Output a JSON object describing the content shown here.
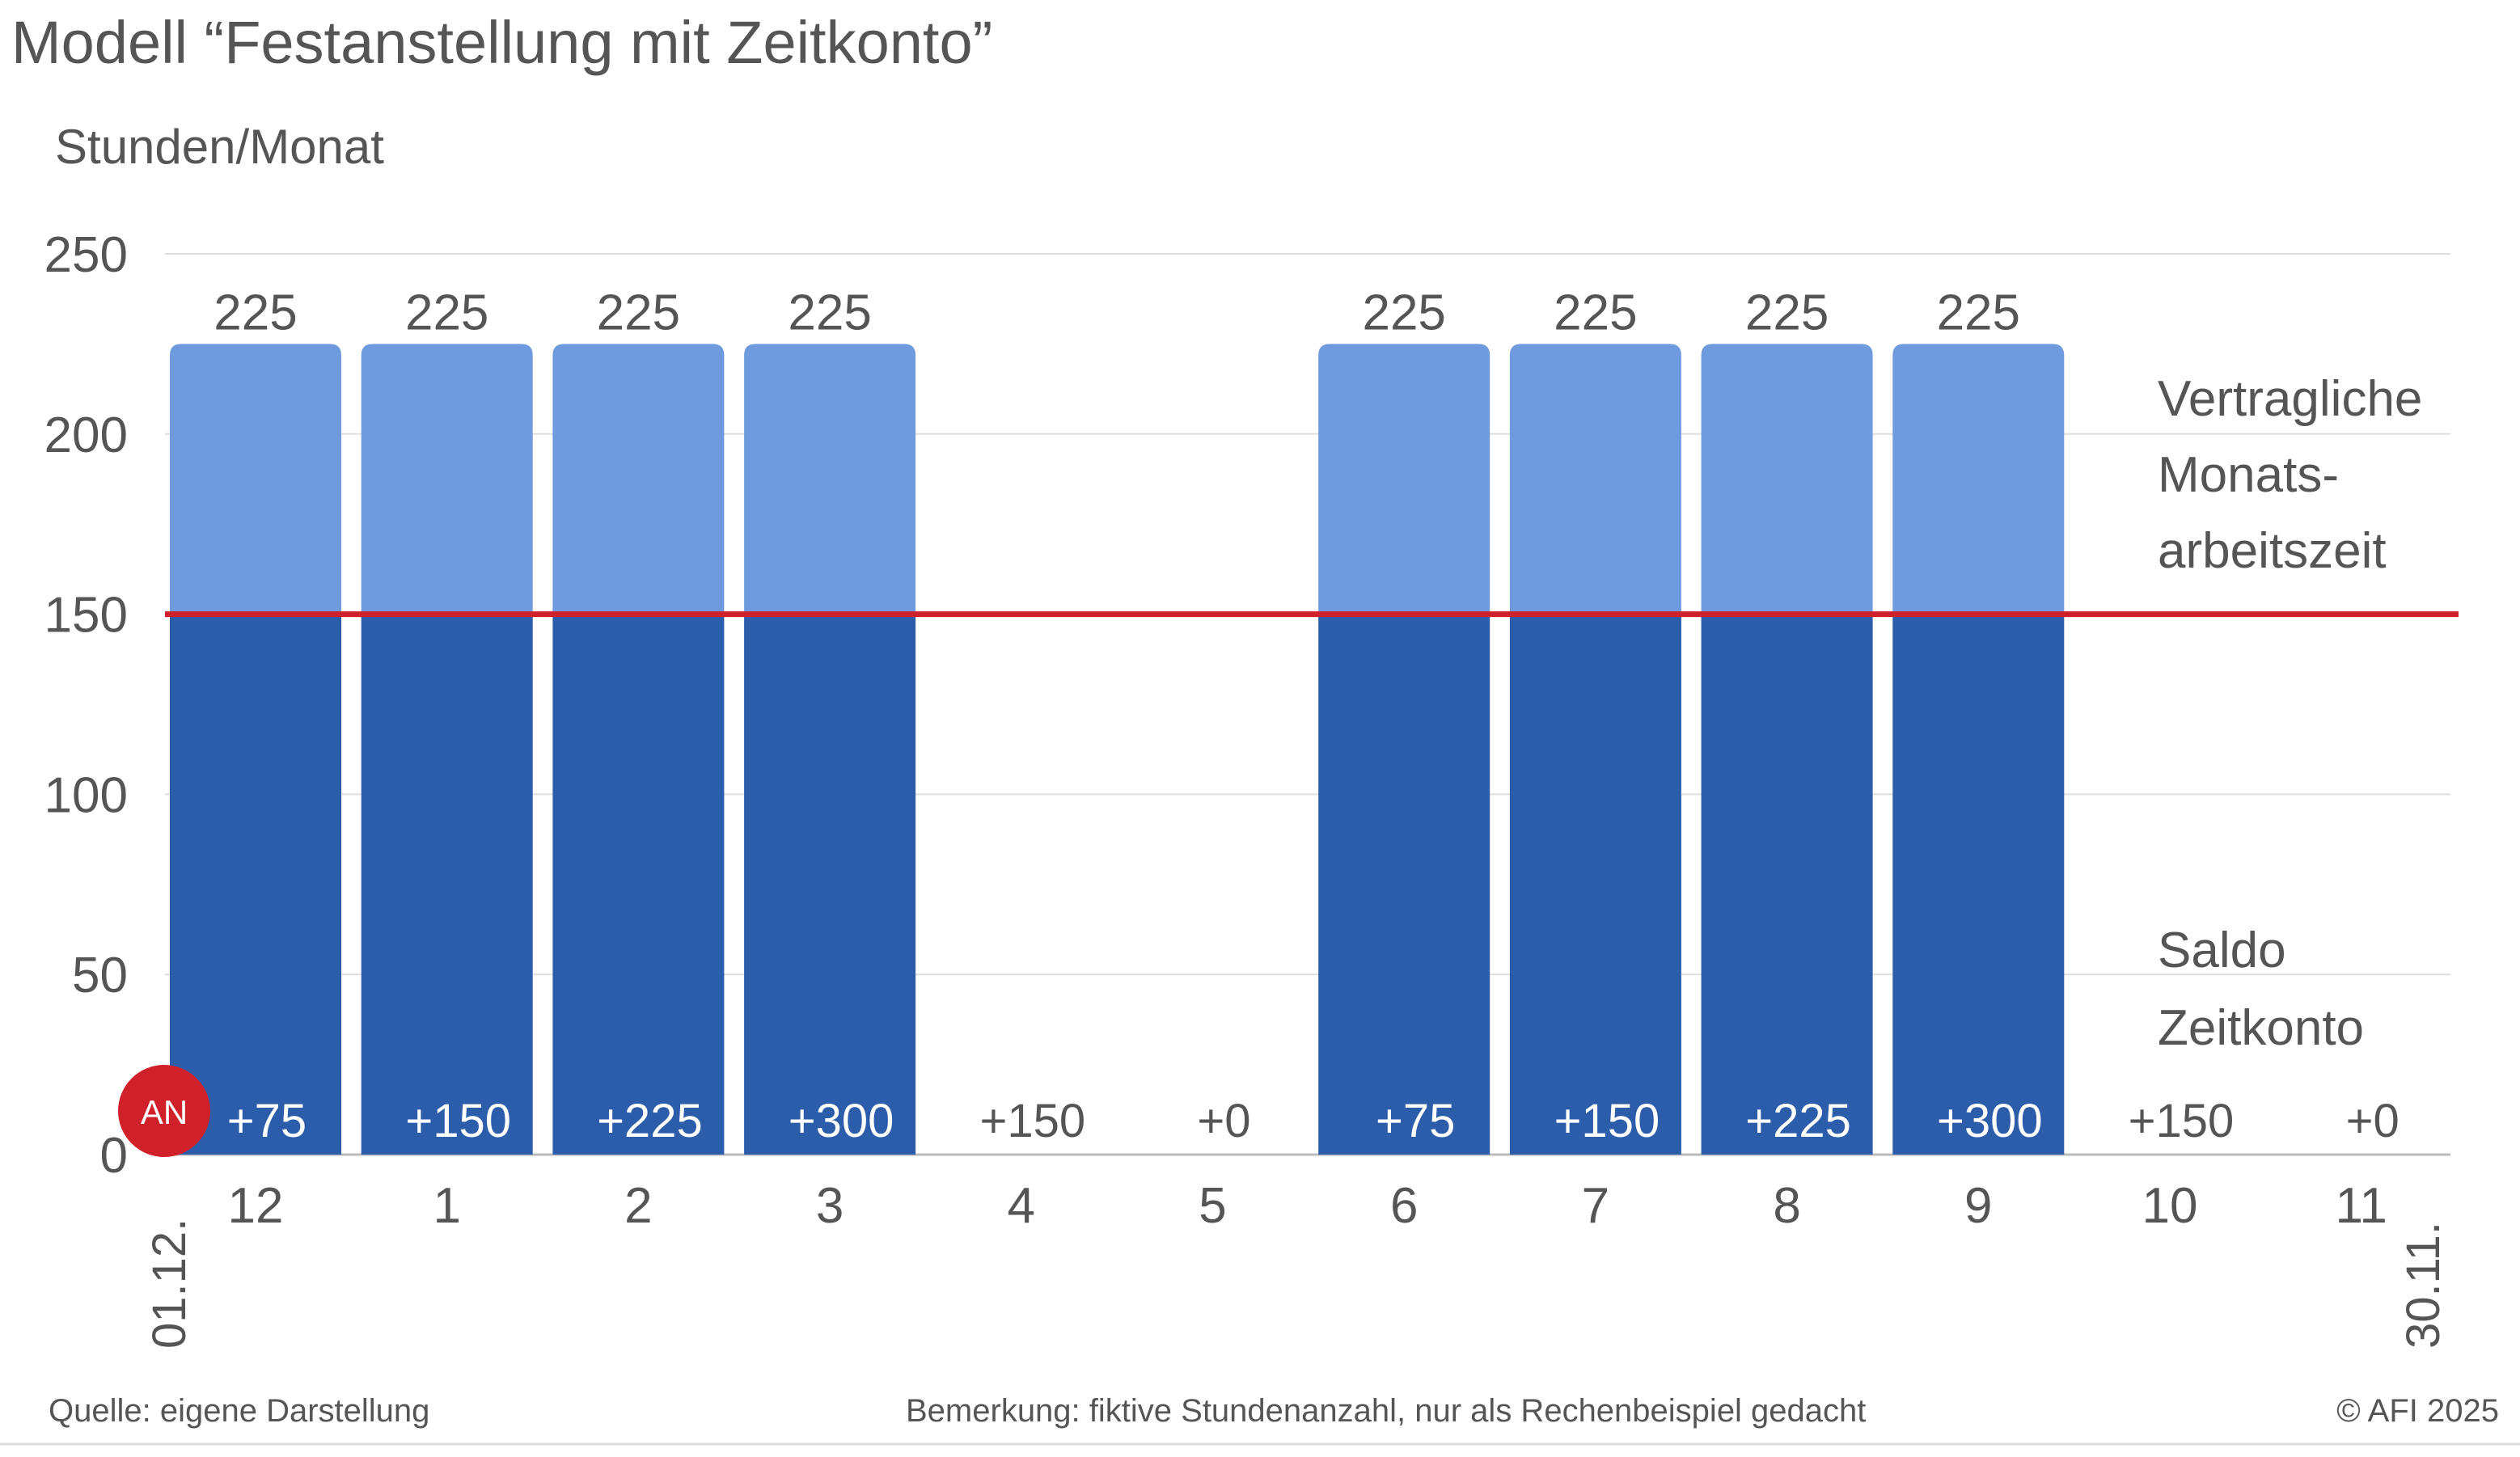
{
  "chart_data": {
    "type": "bar",
    "title": "Modell “Festanstellung mit Zeitkonto”",
    "ylabel": "Stunden/Monat",
    "ylim": [
      0,
      250
    ],
    "yticks": [
      "0",
      "50",
      "100",
      "150",
      "200",
      "250"
    ],
    "categories": [
      "12",
      "1",
      "2",
      "3",
      "4",
      "5",
      "6",
      "7",
      "8",
      "9",
      "10",
      "11"
    ],
    "values": [
      225,
      225,
      225,
      225,
      0,
      0,
      225,
      225,
      225,
      225,
      0,
      0
    ],
    "top_labels": [
      "225",
      "225",
      "225",
      "225",
      "",
      "",
      "225",
      "225",
      "225",
      "225",
      "",
      ""
    ],
    "saldo_labels": [
      "+75",
      "+150",
      "+225",
      "+300",
      "+150",
      "+0",
      "+75",
      "+150",
      "+225",
      "+300",
      "+150",
      "+0"
    ],
    "reference_line": {
      "value": 150
    },
    "annotation_upper": [
      "Vertragliche",
      "Monats-",
      "arbeitszeit"
    ],
    "annotation_lower": [
      "Saldo",
      "Zeitkonto"
    ],
    "start_date": "01.12.",
    "end_date": "30.11.",
    "badge": "AN",
    "grid": true,
    "colors": {
      "bar_upper": "#6f9bde",
      "bar_lower": "#2b5dab",
      "reference_line": "#d0202a",
      "badge": "#d0202a",
      "grid": "#dedede",
      "text": "#555555"
    }
  },
  "footer": {
    "source": "Quelle: eigene Darstellung",
    "note": "Bemerkung: fiktive Stundenanzahl, nur als Rechenbeispiel gedacht",
    "copyright": "© AFI 2025"
  }
}
